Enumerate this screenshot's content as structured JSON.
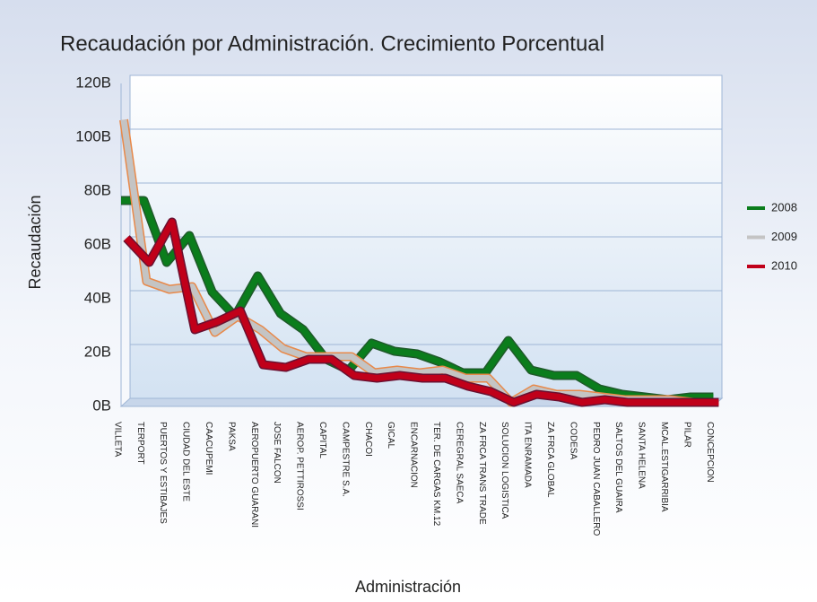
{
  "chart_data": {
    "type": "line",
    "title": "Recaudación por Administración. Crecimiento Porcentual",
    "y_label": "Recaudación",
    "x_label": "Administración",
    "categories": [
      "VILLETA",
      "TERPORT",
      "PUERTOS Y ESTIBAJES",
      "CIUDAD DEL ESTE",
      "CAACUPEMI",
      "PAKSA",
      "AEROPUERTO GUARANI",
      "JOSE FALCON",
      "AEROP. PETTIROSSI",
      "CAPITAL",
      "CAMPESTRE S.A.",
      "CHACOI",
      "GICAL",
      "ENCARNACION",
      "TER. DE CARGAS KM.12",
      "CEREGRAL SAECA",
      "ZA FRCA TRANS TRADE",
      "SOLUCION LOGISTICA",
      "ITA ENRAMADA",
      "ZA FRCA GLOBAL",
      "CODESA",
      "PEDRO JUAN CABALLERO",
      "SALTOS DEL GUAIRA",
      "SANTA HELENA",
      "MCAL.ESTIGARRIBIA",
      "PILAR",
      "CONCEPCION"
    ],
    "series": [
      {
        "name": "2008",
        "color": "#0b7d1c",
        "outline": "#1f5a2a",
        "values": [
          75,
          75,
          52,
          62,
          41,
          32,
          47,
          33,
          27,
          16,
          12,
          22,
          19,
          18,
          15,
          11,
          11,
          23,
          12,
          10,
          10,
          5,
          3,
          2,
          1,
          2,
          2
        ]
      },
      {
        "name": "2009",
        "color": "#c4c4c4",
        "outline": "#e8894a",
        "values": [
          105,
          45,
          42,
          43,
          26,
          32,
          27,
          20,
          17,
          17,
          17,
          11,
          12,
          11,
          12,
          9,
          9,
          0,
          5,
          3,
          3,
          2,
          1,
          1,
          1,
          0,
          0
        ]
      },
      {
        "name": "2010",
        "color": "#c0001a",
        "outline": "#6a1030",
        "values": [
          61,
          52,
          67,
          27,
          30,
          34,
          14,
          13,
          16,
          16,
          10,
          9,
          10,
          9,
          9,
          6,
          4,
          0,
          3,
          2,
          0,
          1,
          0,
          0,
          0,
          0,
          0
        ]
      }
    ],
    "ylim": [
      0,
      120
    ],
    "yticks": [
      {
        "value": 0,
        "label": "0B"
      },
      {
        "value": 20,
        "label": "20B"
      },
      {
        "value": 40,
        "label": "40B"
      },
      {
        "value": 60,
        "label": "60B"
      },
      {
        "value": 80,
        "label": "80B"
      },
      {
        "value": 100,
        "label": "100B"
      },
      {
        "value": 120,
        "label": "120B"
      }
    ],
    "grid": true,
    "legend": "right"
  }
}
